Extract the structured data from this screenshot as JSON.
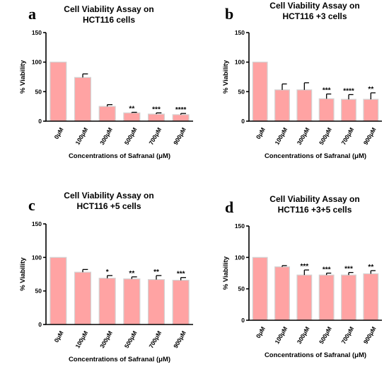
{
  "chart_data": [
    {
      "type": "bar",
      "panel": "a",
      "title": "Cell Viability Assay on",
      "subtitle": "HCT116 cells",
      "ylabel": "% Viability",
      "xlabel": "Concentrations of Safranal (μM)",
      "ylim": [
        0,
        150
      ],
      "yticks": [
        0,
        50,
        100,
        150
      ],
      "categories": [
        "0μM",
        "100μM",
        "300μM",
        "500μM",
        "700μM",
        "900μM"
      ],
      "values": [
        100,
        74,
        25,
        14,
        12,
        11
      ],
      "errors": [
        0,
        6,
        3,
        1,
        2,
        2
      ],
      "significance": [
        "",
        "",
        "",
        "**",
        "***",
        "****"
      ]
    },
    {
      "type": "bar",
      "panel": "b",
      "title": "Cell Viability Assay on",
      "subtitle": "HCT116 +3 cells",
      "ylabel": "% Viability",
      "xlabel": "Concentrations of Safranal (μM)",
      "ylim": [
        0,
        150
      ],
      "yticks": [
        0,
        50,
        100,
        150
      ],
      "categories": [
        "0μM",
        "100μM",
        "300μM",
        "500μM",
        "700μM",
        "900μM"
      ],
      "values": [
        100,
        53,
        53,
        38,
        37,
        37
      ],
      "errors": [
        0,
        10,
        12,
        8,
        8,
        11
      ],
      "significance": [
        "",
        "",
        "",
        "***",
        "****",
        "**"
      ]
    },
    {
      "type": "bar",
      "panel": "c",
      "title": "Cell Viability Assay on",
      "subtitle": "HCT116 +5 cells",
      "ylabel": "% Viability",
      "xlabel": "Concentrations of Safranal (μM)",
      "ylim": [
        0,
        150
      ],
      "yticks": [
        0,
        50,
        100,
        150
      ],
      "categories": [
        "0μM",
        "100μM",
        "300μM",
        "500μM",
        "700μM",
        "900μM"
      ],
      "values": [
        100,
        78,
        69,
        68,
        67,
        66
      ],
      "errors": [
        0,
        4,
        4,
        3,
        6,
        4
      ],
      "significance": [
        "",
        "",
        "*",
        "**",
        "**",
        "***"
      ]
    },
    {
      "type": "bar",
      "panel": "d",
      "title": "Cell Viability Assay on",
      "subtitle": "HCT116 +3+5 cells",
      "ylabel": "% Viability",
      "xlabel": "Concentrations of Safranal (μM)",
      "ylim": [
        0,
        150
      ],
      "yticks": [
        0,
        50,
        100,
        150
      ],
      "categories": [
        "0μM",
        "100μM",
        "300μM",
        "500μM",
        "700μM",
        "900μM"
      ],
      "values": [
        100,
        85,
        72,
        72,
        72,
        74
      ],
      "errors": [
        0,
        2,
        8,
        3,
        4,
        5
      ],
      "significance": [
        "",
        "",
        "***",
        "***",
        "***",
        "**"
      ]
    }
  ],
  "colors": {
    "bar_fill": "#ffa3a3",
    "bar_edge": "#d3d3d3",
    "axis": "#000000"
  }
}
